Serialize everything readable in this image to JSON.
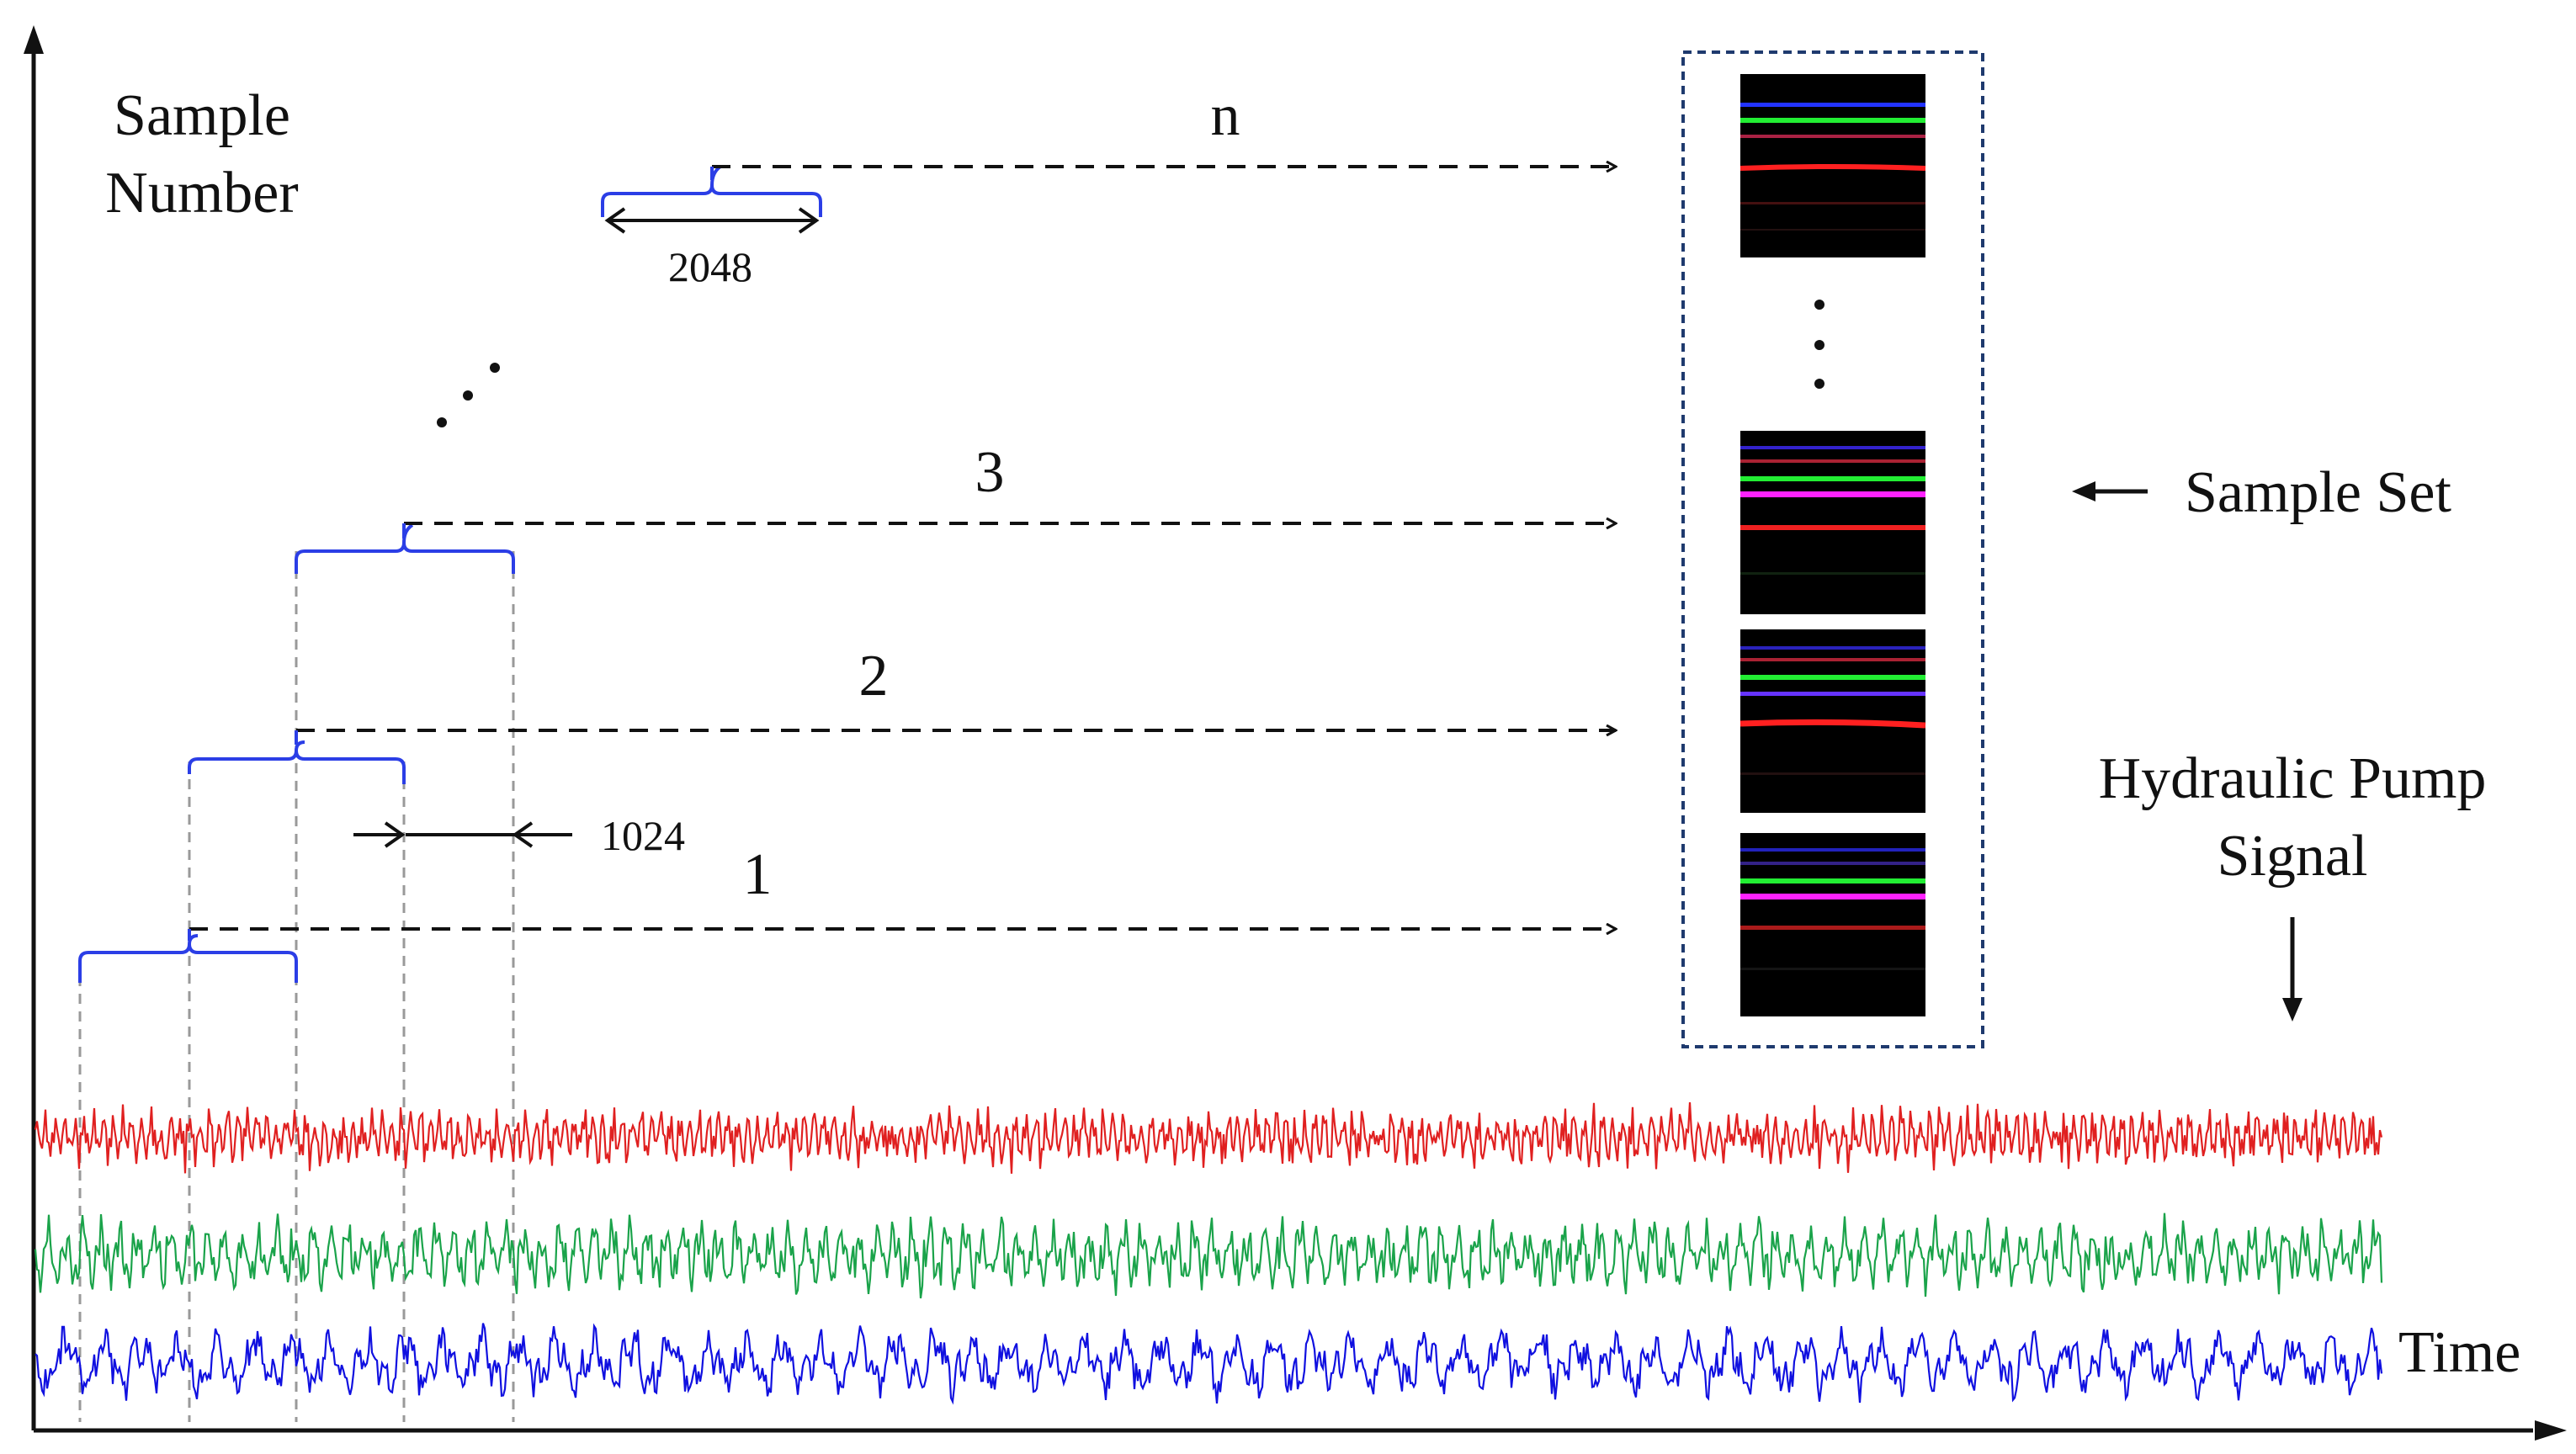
{
  "axes": {
    "y_label_line1": "Sample",
    "y_label_line2": "Number",
    "x_label": "Time"
  },
  "samples": [
    {
      "label": "1"
    },
    {
      "label": "2"
    },
    {
      "label": "3"
    },
    {
      "label": "n"
    }
  ],
  "window_size_label": "2048",
  "step_size_label": "1024",
  "ellipsis_left": ". . .",
  "sample_set_label": "Sample Set",
  "signal_label_line1": "Hydraulic Pump",
  "signal_label_line2": "Signal",
  "colors": {
    "bracket": "#2b3ee6",
    "signal_red": "#e02020",
    "signal_green": "#1aa34a",
    "signal_blue": "#1010e0",
    "dashed_gray": "#999999",
    "box_border": "#1f3a6e"
  }
}
